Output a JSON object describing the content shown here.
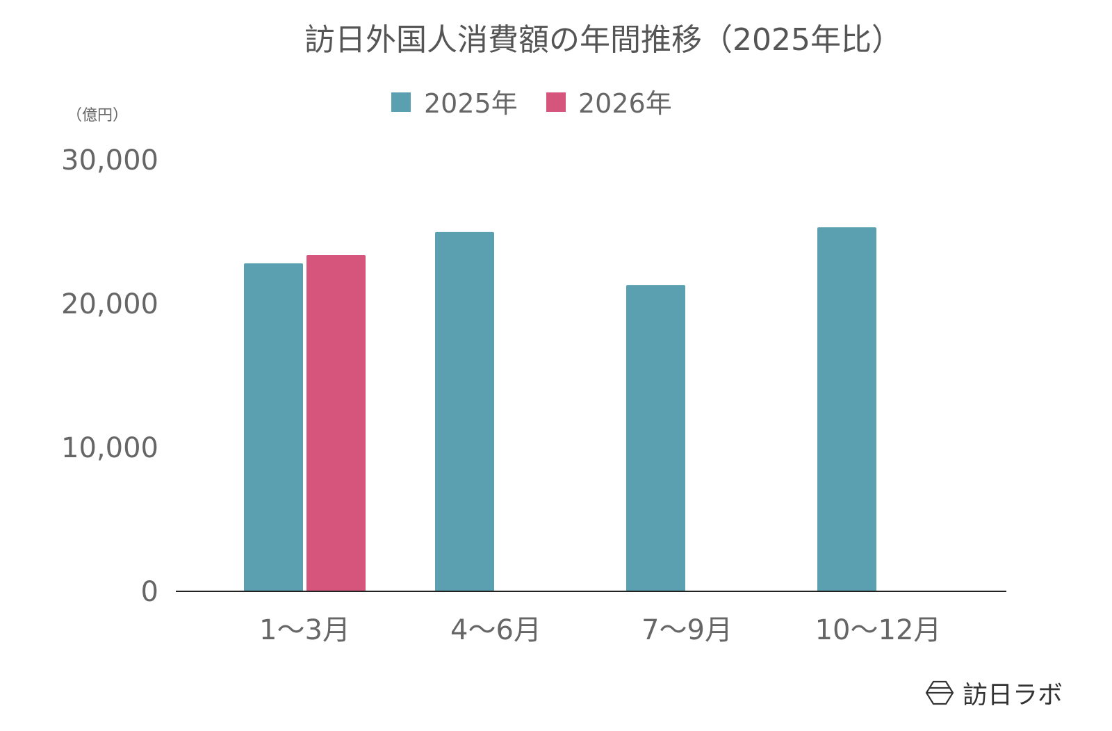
{
  "chart_data": {
    "type": "bar",
    "title": "訪日外国人消費額の年間推移（2025年比）",
    "ylabel": "（億円）",
    "xlabel": "",
    "categories": [
      "1〜3月",
      "4〜6月",
      "7〜9月",
      "10〜12月"
    ],
    "series": [
      {
        "name": "2025年",
        "color": "#5ba0b0",
        "values": [
          22800,
          24980,
          21300,
          25310
        ]
      },
      {
        "name": "2026年",
        "color": "#d5557d",
        "values": [
          23380,
          null,
          null,
          null
        ]
      }
    ],
    "ylim": [
      0,
      30000
    ],
    "yticks": [
      0,
      10000,
      20000,
      30000
    ],
    "ytick_labels": [
      "0",
      "10,000",
      "20,000",
      "30,000"
    ],
    "grid": false,
    "legend_position": "top-center"
  },
  "branding": {
    "logo_text": "訪日ラボ"
  }
}
